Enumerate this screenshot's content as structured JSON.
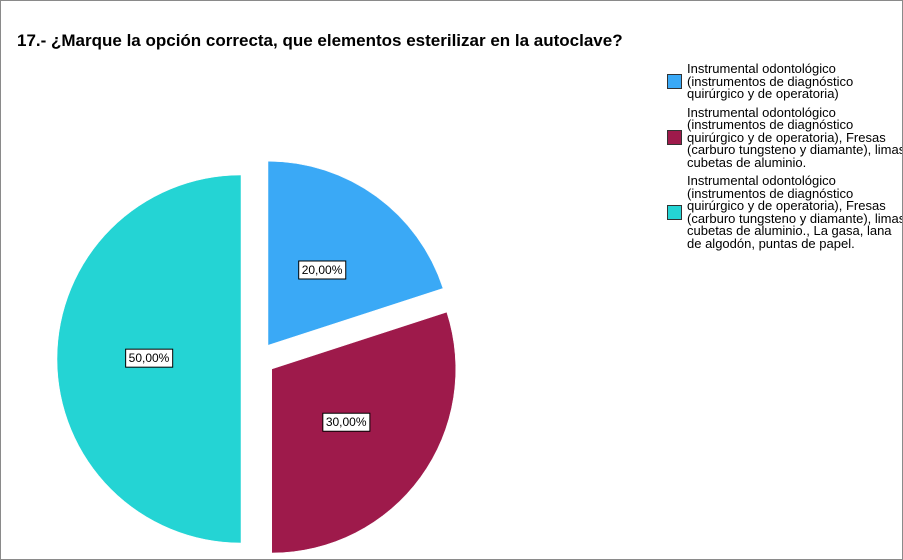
{
  "chart_data": {
    "type": "pie",
    "title": "17.- ¿Marque la opción correcta, que elementos esterilizar en la autoclave?",
    "categories": [
      "Instrumental odontológico (instrumentos de diagnóstico quirúrgico y de operatoria)",
      "Instrumental odontológico (instrumentos de diagnóstico quirúrgico y de operatoria), Fresas (carburo tungsteno y diamante), limas cubetas de aluminio.",
      "Instrumental odontológico (instrumentos de diagnóstico quirúrgico y de operatoria), Fresas (carburo tungsteno y diamante), limas cubetas de aluminio., La gasa, lana de algodón, puntas de papel."
    ],
    "values": [
      20,
      30,
      50
    ],
    "value_labels": [
      "20,00%",
      "30,00%",
      "50,00%"
    ],
    "colors": [
      "#3aa9f6",
      "#9e1a4b",
      "#24d4d4"
    ]
  }
}
